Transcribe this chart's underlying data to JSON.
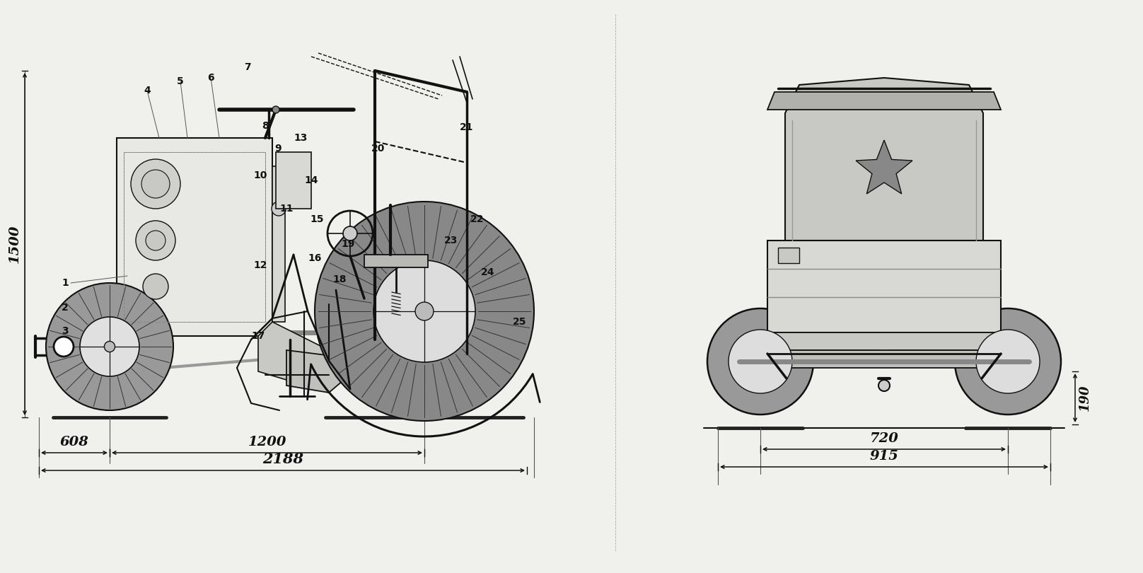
{
  "bg_color": "#f0f0ec",
  "line_color": "#111111",
  "dim_608": "608",
  "dim_1200": "1200",
  "dim_2188": "2188",
  "dim_1500": "1500",
  "dim_720": "720",
  "dim_915": "915",
  "dim_190": "190",
  "font_size_dim": 14,
  "font_size_label": 10,
  "font_size_label_large": 11
}
